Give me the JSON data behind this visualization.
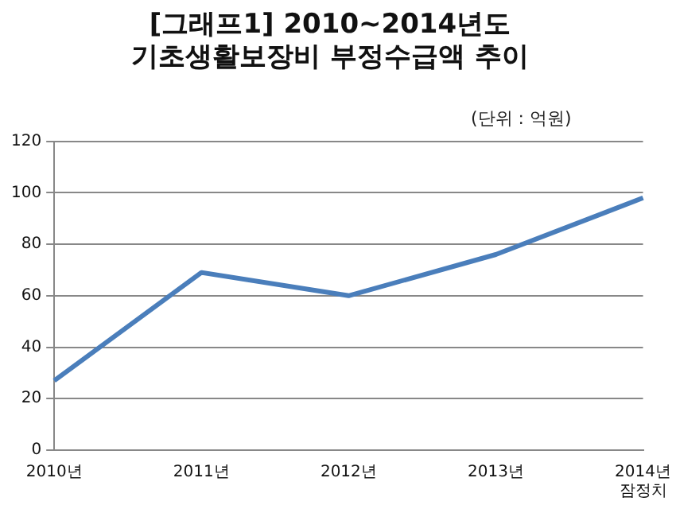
{
  "chart_data": {
    "type": "line",
    "title": "[그래프1] 2010~2014년도\n기초생활보장비 부정수급액 추이",
    "annotations": [
      "(단위 : 억원)"
    ],
    "categories": [
      "2010년",
      "2011년",
      "2012년",
      "2013년",
      "2014년\n잠정치"
    ],
    "series": [
      {
        "color": "#4a7ebb",
        "values": [
          27,
          69,
          60,
          76,
          98
        ]
      }
    ],
    "ylim": [
      0,
      120
    ],
    "yticks": [
      0,
      20,
      40,
      60,
      80,
      100,
      120
    ],
    "grid": "y",
    "legend": false,
    "marker": "none",
    "line_style": "solid"
  }
}
